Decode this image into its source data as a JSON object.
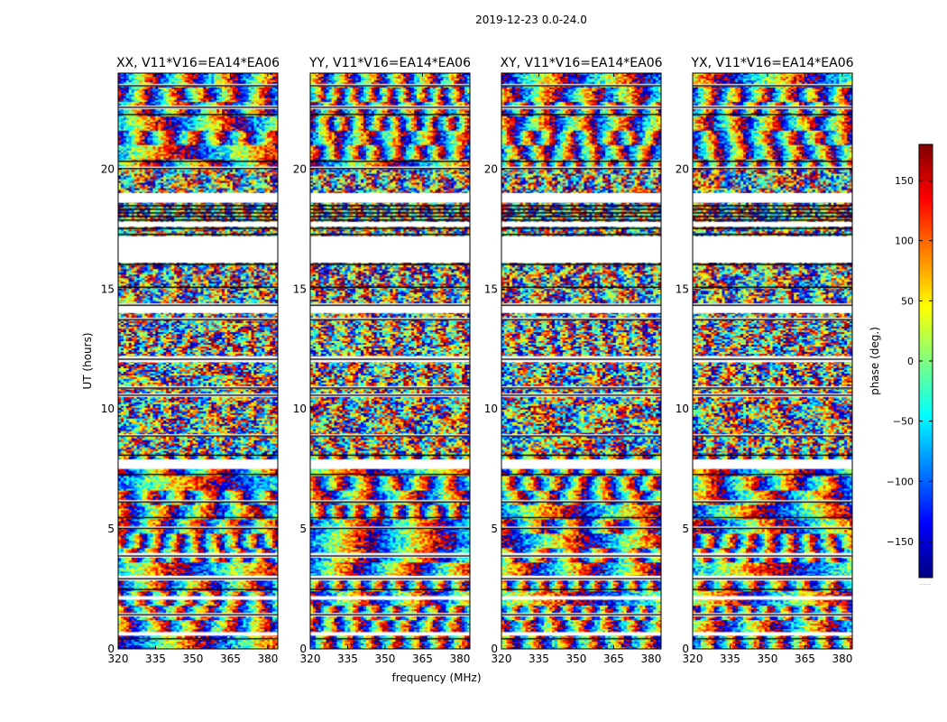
{
  "figure_title": "2019-12-23 0.0-24.0",
  "colorbar": {
    "label": "phase (deg.)",
    "ticks": [
      150,
      100,
      50,
      0,
      -50,
      -100,
      -150
    ],
    "tick_labels": [
      "150",
      "100",
      "50",
      "0",
      "−50",
      "−100",
      "−150"
    ],
    "range": [
      -180,
      180
    ],
    "footer": "......"
  },
  "chart_data": {
    "type": "heatmap",
    "xlabel": "frequency (MHz)",
    "ylabel": "UT (hours)",
    "xlim": [
      320,
      384
    ],
    "ylim": [
      0,
      24
    ],
    "xticks": [
      320,
      335,
      350,
      365,
      380
    ],
    "xtick_labels": [
      "320",
      "335",
      "350",
      "365",
      "380"
    ],
    "yticks": [
      0,
      5,
      10,
      15,
      20
    ],
    "ytick_labels": [
      "0",
      "5",
      "10",
      "15",
      "20"
    ],
    "gap_hours": [
      [
        0.55,
        0.7
      ],
      [
        1.35,
        1.5
      ],
      [
        2.05,
        2.2
      ],
      [
        2.85,
        3.05
      ],
      [
        3.8,
        4.0
      ],
      [
        5.0,
        5.1
      ],
      [
        6.1,
        6.2
      ],
      [
        7.5,
        7.9
      ],
      [
        8.85,
        8.95
      ],
      [
        10.5,
        10.65
      ],
      [
        10.85,
        10.95
      ],
      [
        11.95,
        12.2
      ],
      [
        13.7,
        13.8
      ],
      [
        14.0,
        14.4
      ],
      [
        16.1,
        17.2
      ],
      [
        17.6,
        17.8
      ],
      [
        18.6,
        19.0
      ],
      [
        20.0,
        20.1
      ],
      [
        22.5,
        22.65
      ],
      [
        23.45,
        23.55
      ]
    ],
    "black_lines_hours": [
      0.45,
      1.45,
      2.5,
      2.95,
      3.9,
      5.05,
      5.5,
      6.15,
      7.3,
      8.1,
      8.9,
      10.6,
      10.9,
      12.1,
      13.75,
      14.35,
      15.1,
      16.05,
      17.3,
      17.55,
      17.9,
      18.05,
      18.2,
      18.35,
      18.5,
      20.05,
      20.35,
      22.3,
      22.6,
      23.5
    ],
    "panels": [
      {
        "title": "XX, V11*V16=EA14*EA06",
        "seed": 11
      },
      {
        "title": "YY, V11*V16=EA14*EA06",
        "seed": 23
      },
      {
        "title": "XY, V11*V16=EA14*EA06",
        "seed": 37
      },
      {
        "title": "YX, V11*V16=EA14*EA06",
        "seed": 53
      }
    ]
  }
}
